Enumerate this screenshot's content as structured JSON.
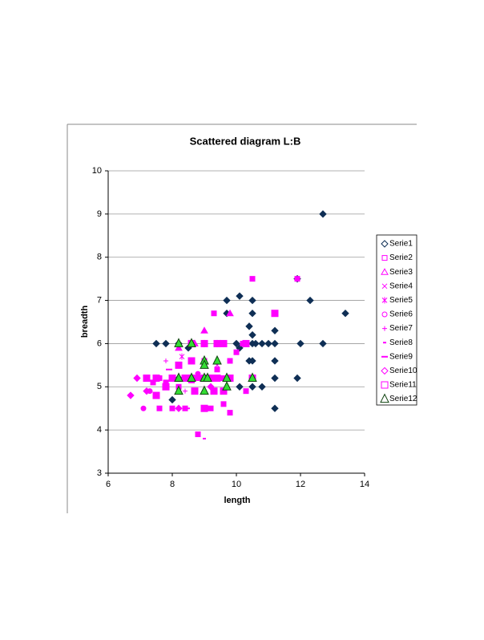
{
  "chart_data": {
    "type": "scatter",
    "title": "Scattered diagram L:B",
    "x_label": "length",
    "y_label": "breadth",
    "xlim": [
      6,
      14
    ],
    "xticks": [
      6,
      8,
      10,
      12,
      14
    ],
    "ylim": [
      3,
      10
    ],
    "yticks": [
      3,
      4,
      5,
      6,
      7,
      8,
      9,
      10
    ],
    "grid": true,
    "legend": "right",
    "series": [
      {
        "name": "Serie1",
        "color": "#0f2f55",
        "marker": "diamond",
        "x": [
          12.7,
          13.4,
          12.3,
          11.9,
          12.7,
          12,
          11.9,
          11.2,
          11.2,
          11.2,
          11.2,
          11.2,
          10.1,
          10.5,
          9.7,
          10,
          10.1,
          10.4,
          10.5,
          10.5,
          10.5,
          10.6,
          10.8,
          11,
          10.5,
          10.4,
          10.5,
          10.5,
          10.8,
          10.1,
          9.7,
          9.7,
          9.4,
          9,
          8.6,
          8.2,
          7.8,
          7.5,
          8,
          8.2,
          8.5
        ],
        "values": [
          9,
          6.7,
          7,
          7.5,
          6,
          6,
          5.2,
          6.3,
          6,
          5.6,
          5.2,
          4.5,
          7.1,
          7,
          7,
          6,
          5.9,
          6.4,
          6.7,
          6.2,
          6,
          6,
          6,
          6,
          5.6,
          5.6,
          5.2,
          5,
          5,
          5,
          6.7,
          5.2,
          6,
          6,
          6,
          6,
          6,
          6,
          4.7,
          5.2,
          5.9
        ]
      },
      {
        "name": "Serie2",
        "color": "#ff00ff",
        "marker": "square",
        "x": [
          7.2,
          7.4,
          7.6,
          7.8,
          8,
          8.2,
          8.4,
          8.6,
          8.8,
          9,
          9.2,
          9.4,
          9.6,
          9.8,
          10,
          10.2,
          10.5,
          11.9,
          9.3,
          9.2,
          9,
          8.8,
          8.4,
          8,
          7.6,
          9.8,
          9.6,
          10.3,
          11.2
        ],
        "values": [
          5.2,
          5.1,
          5.2,
          5.1,
          5.2,
          5,
          5.2,
          5.6,
          5.2,
          5.6,
          5.2,
          5.4,
          5.2,
          5.6,
          5.8,
          6,
          7.5,
          7.5,
          6.7,
          4.5,
          4.5,
          3.9,
          4.5,
          4.5,
          4.5,
          4.4,
          4.6,
          4.9,
          6.7
        ]
      },
      {
        "name": "Serie3",
        "color": "#ff00ff",
        "marker": "triangle",
        "x": [
          9,
          9.8,
          8.7,
          8.2
        ],
        "values": [
          6.3,
          6.7,
          6,
          5.9
        ]
      },
      {
        "name": "Serie4",
        "color": "#ff00ff",
        "marker": "x",
        "x": [
          8.6,
          9.4
        ],
        "values": [
          5.6,
          5.5
        ]
      },
      {
        "name": "Serie5",
        "color": "#ff00ff",
        "marker": "star",
        "x": [
          8.3
        ],
        "values": [
          5.7
        ]
      },
      {
        "name": "Serie6",
        "color": "#ff00ff",
        "marker": "circle",
        "x": [
          7.1,
          7.3,
          8.8
        ],
        "values": [
          4.5,
          4.9,
          5.3
        ]
      },
      {
        "name": "Serie7",
        "color": "#ff00ff",
        "marker": "plus",
        "x": [
          7.8,
          8.4
        ],
        "values": [
          5.6,
          4.9
        ]
      },
      {
        "name": "Serie8",
        "color": "#ff00ff",
        "marker": "dash",
        "x": [
          8.5,
          9,
          8.2
        ],
        "values": [
          4.5,
          3.8,
          6
        ]
      },
      {
        "name": "Serie9",
        "color": "#ff00ff",
        "marker": "longdash",
        "x": [
          7.9,
          8.6
        ],
        "values": [
          5.4,
          5.1
        ]
      },
      {
        "name": "Serie10",
        "color": "#ff00ff",
        "marker": "diamond",
        "x": [
          6.7,
          6.9,
          7.2,
          7.5,
          8.2,
          9.2
        ],
        "values": [
          4.8,
          5.2,
          4.9,
          5.2,
          4.5,
          5
        ]
      },
      {
        "name": "Serie11",
        "color": "#ff00ff",
        "marker": "bigsquare",
        "x": [
          7.2,
          7.5,
          7.5,
          7.8,
          8,
          8.4,
          8.6,
          8.7,
          9,
          9.2,
          9.4,
          9,
          9.6,
          9.4,
          9,
          8.6,
          9.8,
          10.5,
          11.2,
          10.3,
          8.2,
          8.6,
          9.3,
          9.6
        ],
        "values": [
          5.2,
          5.2,
          4.8,
          5,
          5.2,
          5.2,
          5.2,
          4.9,
          5.2,
          5.2,
          5.2,
          4.5,
          6,
          6,
          6,
          6,
          5.2,
          5.2,
          6.7,
          6,
          5.5,
          5.6,
          4.9,
          4.9
        ]
      },
      {
        "name": "Serie12",
        "color": "#33dd33",
        "marker": "bigtriangle",
        "x": [
          8.2,
          8.2,
          8.2,
          8.6,
          8.6,
          9,
          9,
          9,
          9.1,
          9,
          9.4,
          9.7,
          9.7,
          10.5
        ],
        "values": [
          6,
          5.2,
          4.9,
          6,
          5.2,
          5.6,
          5.5,
          5.2,
          5.2,
          4.9,
          5.6,
          5.2,
          5,
          5.2
        ]
      }
    ]
  }
}
